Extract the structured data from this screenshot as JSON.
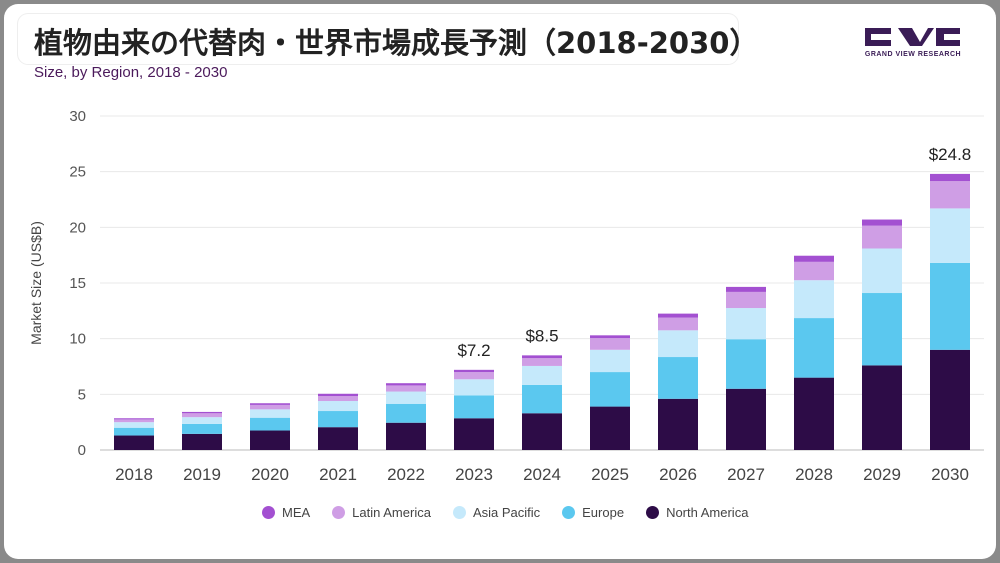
{
  "header": {
    "title": "植物由来の代替肉・世界市場成長予測（2018-2030）",
    "subtitle": "Size, by Region, 2018 - 2030",
    "logo_text": "GRAND VIEW RESEARCH"
  },
  "colors": {
    "north_america": "#2d0c47",
    "europe": "#5bc8ef",
    "asia_pacific": "#c5e9fb",
    "latin_america": "#cf9ee5",
    "mea": "#a350d1",
    "logo": "#3a1c56"
  },
  "chart_data": {
    "type": "bar",
    "stacked": true,
    "title": "",
    "xlabel": "",
    "ylabel": "Market Size (US$B)",
    "ylim": [
      0,
      30
    ],
    "yticks": [
      0,
      5,
      10,
      15,
      20,
      25,
      30
    ],
    "grid": true,
    "legend_position": "bottom",
    "categories": [
      "2018",
      "2019",
      "2020",
      "2021",
      "2022",
      "2023",
      "2024",
      "2025",
      "2026",
      "2027",
      "2028",
      "2029",
      "2030"
    ],
    "series": [
      {
        "name": "North America",
        "color": "#2d0c47",
        "values": [
          1.3,
          1.45,
          1.75,
          2.05,
          2.45,
          2.85,
          3.3,
          3.9,
          4.6,
          5.5,
          6.5,
          7.6,
          9.0
        ]
      },
      {
        "name": "Europe",
        "color": "#5bc8ef",
        "values": [
          0.7,
          0.9,
          1.15,
          1.45,
          1.7,
          2.05,
          2.55,
          3.1,
          3.75,
          4.45,
          5.35,
          6.5,
          7.8
        ]
      },
      {
        "name": "Asia Pacific",
        "color": "#c5e9fb",
        "values": [
          0.5,
          0.6,
          0.75,
          0.9,
          1.1,
          1.45,
          1.7,
          2.0,
          2.4,
          2.8,
          3.4,
          4.0,
          4.9
        ]
      },
      {
        "name": "Latin America",
        "color": "#cf9ee5",
        "values": [
          0.25,
          0.35,
          0.4,
          0.45,
          0.55,
          0.65,
          0.7,
          1.05,
          1.15,
          1.45,
          1.65,
          2.05,
          2.45
        ]
      },
      {
        "name": "MEA",
        "color": "#a350d1",
        "values": [
          0.1,
          0.12,
          0.15,
          0.2,
          0.2,
          0.2,
          0.25,
          0.25,
          0.35,
          0.45,
          0.55,
          0.55,
          0.65
        ]
      }
    ],
    "annotations": [
      {
        "category": "2023",
        "text": "$7.2",
        "value": 7.2
      },
      {
        "category": "2024",
        "text": "$8.5",
        "value": 8.5
      },
      {
        "category": "2030",
        "text": "$24.8",
        "value": 24.8
      }
    ]
  }
}
